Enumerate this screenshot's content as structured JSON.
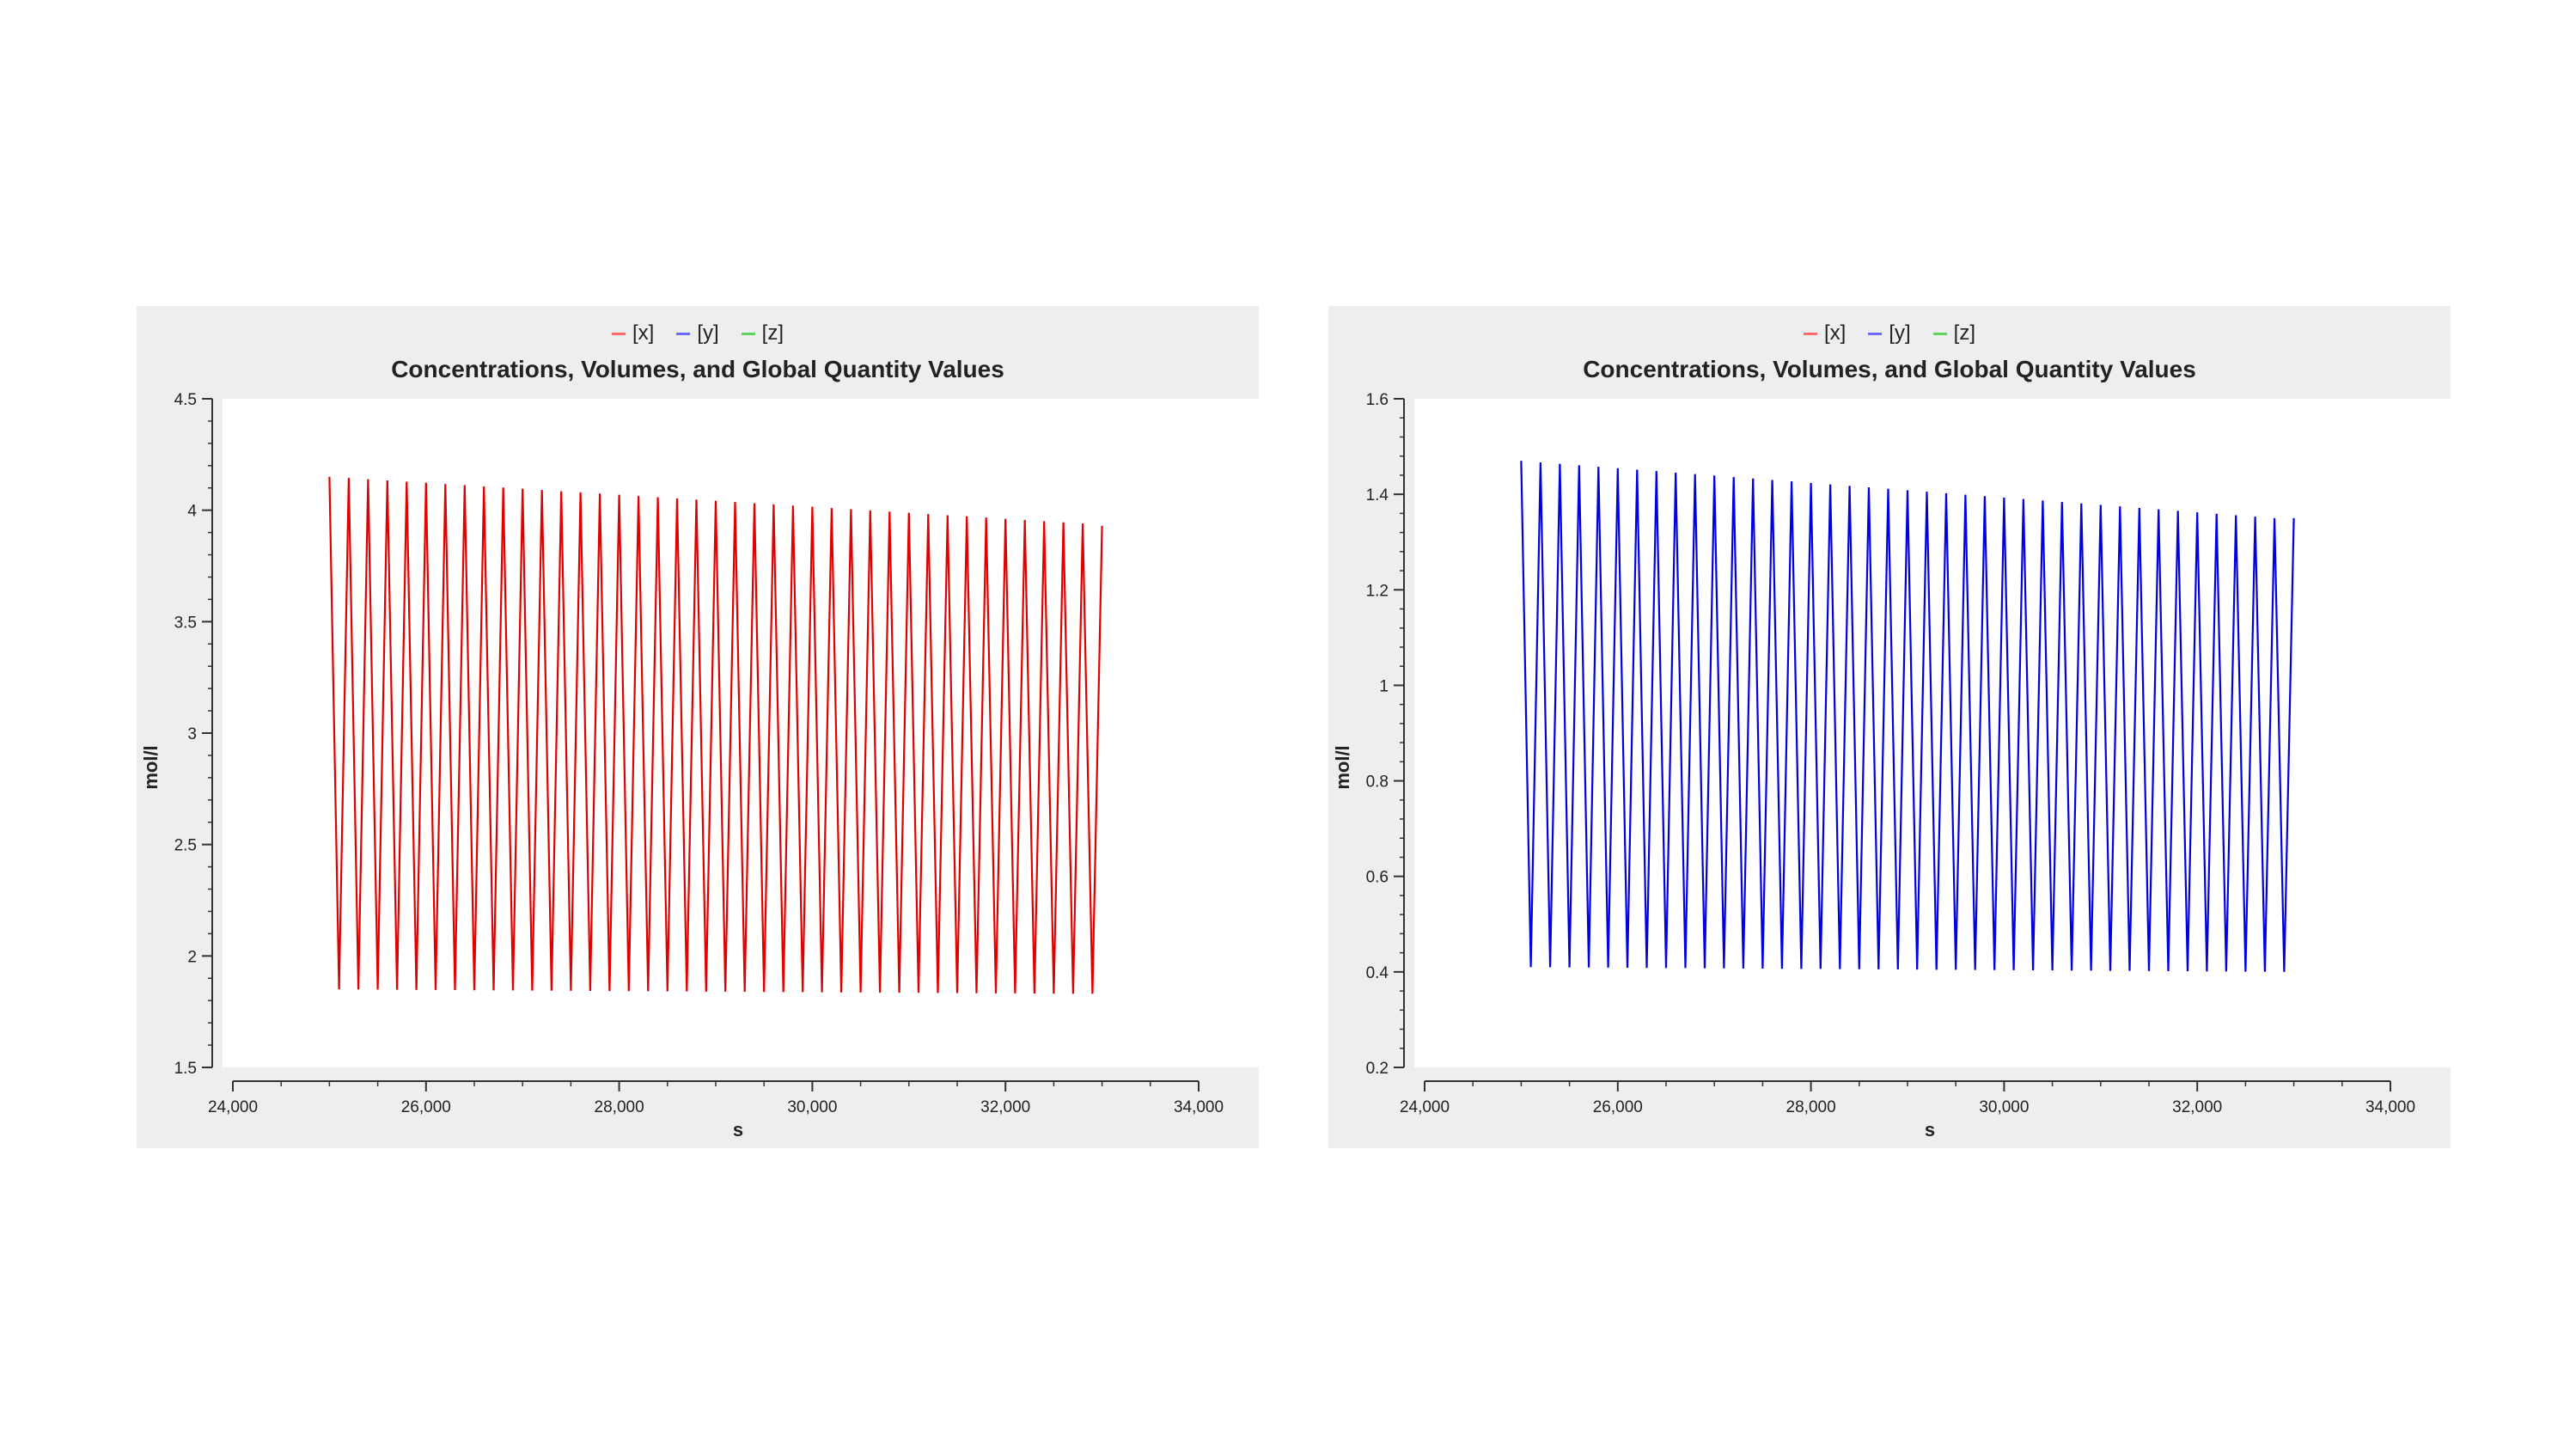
{
  "chart_data": [
    {
      "type": "line",
      "title": "Concentrations, Volumes, and Global Quantity Values",
      "xlabel": "s",
      "ylabel": "mol/l",
      "xlim": [
        24000,
        34000
      ],
      "ylim": [
        1.5,
        4.5
      ],
      "xticks": [
        "24,000",
        "26,000",
        "28,000",
        "30,000",
        "32,000",
        "34,000"
      ],
      "xtick_values": [
        24000,
        26000,
        28000,
        30000,
        32000,
        34000
      ],
      "yticks": [
        "1.5",
        "2",
        "2.5",
        "3",
        "3.5",
        "4",
        "4.5"
      ],
      "ytick_values": [
        1.5,
        2,
        2.5,
        3,
        3.5,
        4,
        4.5
      ],
      "legend": [
        {
          "name": "[x]",
          "color": "#ff6b6b"
        },
        {
          "name": "[y]",
          "color": "#6b6bff"
        },
        {
          "name": "[z]",
          "color": "#5fd35f"
        }
      ],
      "series": [
        {
          "name": "[x]",
          "color": "#e00000",
          "oscillation": {
            "start_x": 25000,
            "end_x": 33000,
            "cycles": 40,
            "peak_start": 4.15,
            "peak_end": 3.94,
            "trough_start": 1.85,
            "trough_end": 1.83,
            "end_value": 3.93
          }
        }
      ]
    },
    {
      "type": "line",
      "title": "Concentrations, Volumes, and Global Quantity Values",
      "xlabel": "s",
      "ylabel": "mol/l",
      "xlim": [
        24000,
        34000
      ],
      "ylim": [
        0.2,
        1.6
      ],
      "xticks": [
        "24,000",
        "26,000",
        "28,000",
        "30,000",
        "32,000",
        "34,000"
      ],
      "xtick_values": [
        24000,
        26000,
        28000,
        30000,
        32000,
        34000
      ],
      "yticks": [
        "0.2",
        "0.4",
        "0.6",
        "0.8",
        "1",
        "1.2",
        "1.4",
        "1.6"
      ],
      "ytick_values": [
        0.2,
        0.4,
        0.6,
        0.8,
        1.0,
        1.2,
        1.4,
        1.6
      ],
      "legend": [
        {
          "name": "[x]",
          "color": "#ff6b6b"
        },
        {
          "name": "[y]",
          "color": "#6b6bff"
        },
        {
          "name": "[z]",
          "color": "#5fd35f"
        }
      ],
      "series": [
        {
          "name": "[y]",
          "color": "#0000e0",
          "oscillation": {
            "start_x": 25000,
            "end_x": 33000,
            "cycles": 40,
            "peak_start": 1.47,
            "peak_end": 1.35,
            "trough_start": 0.41,
            "trough_end": 0.4,
            "end_value": 1.35
          }
        }
      ]
    }
  ]
}
